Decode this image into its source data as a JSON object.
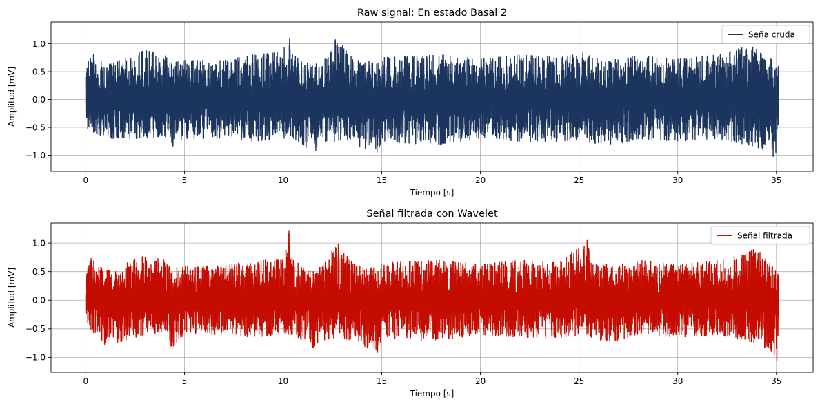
{
  "chart_data": [
    {
      "type": "line",
      "title": "Raw signal: En estado Basal 2",
      "xlabel": "Tiempo [s]",
      "ylabel": "Amplitud [mV]",
      "xlim": [
        -1.76,
        36.86
      ],
      "ylim": [
        -1.29,
        1.39
      ],
      "xticks": [
        0,
        5,
        10,
        15,
        20,
        25,
        30,
        35
      ],
      "xtick_labels": [
        "0",
        "5",
        "10",
        "15",
        "20",
        "25",
        "30",
        "35"
      ],
      "yticks": [
        -1.0,
        -0.5,
        0.0,
        0.5,
        1.0
      ],
      "ytick_labels": [
        "−1.0",
        "−0.5",
        "0.0",
        "0.5",
        "1.0"
      ],
      "grid": true,
      "legend_position": "top-right",
      "series": [
        {
          "name": "Seña cruda",
          "color": "#1c355e",
          "x_range": [
            0,
            35.1
          ],
          "envelope_segments_x": [
            0,
            0.2,
            1.0,
            3.0,
            4.0,
            4.3,
            5.0,
            7.0,
            8.5,
            10.0,
            10.3,
            10.5,
            11.0,
            11.5,
            12.0,
            12.7,
            13.5,
            14.8,
            15.0,
            17.0,
            18.0,
            20.0,
            22.0,
            24.0,
            25.4,
            25.6,
            27.0,
            28.0,
            30.0,
            32.0,
            34.0,
            34.8,
            35.1
          ],
          "envelope_upper": [
            0.4,
            0.88,
            0.6,
            0.88,
            0.8,
            0.65,
            0.7,
            0.7,
            0.8,
            0.85,
            1.27,
            0.8,
            0.7,
            0.6,
            0.7,
            1.1,
            0.75,
            0.65,
            0.75,
            0.78,
            0.8,
            0.72,
            0.8,
            0.75,
            0.85,
            0.75,
            0.72,
            0.8,
            0.72,
            0.8,
            1.0,
            0.7,
            0.6
          ],
          "envelope_lower": [
            -0.5,
            -0.55,
            -0.7,
            -0.7,
            -0.65,
            -0.9,
            -0.7,
            -0.7,
            -0.75,
            -0.7,
            -0.7,
            -0.7,
            -0.8,
            -0.97,
            -0.8,
            -0.75,
            -0.8,
            -0.95,
            -0.75,
            -0.8,
            -0.8,
            -0.7,
            -0.75,
            -0.75,
            -0.7,
            -0.8,
            -0.8,
            -0.7,
            -0.75,
            -0.7,
            -0.85,
            -1.0,
            -1.17
          ]
        }
      ]
    },
    {
      "type": "line",
      "title": "Señal filtrada con Wavelet",
      "xlabel": "Tiempo [s]",
      "ylabel": "Amplitud [mV]",
      "xlim": [
        -1.76,
        36.86
      ],
      "ylim": [
        -1.26,
        1.35
      ],
      "xticks": [
        0,
        5,
        10,
        15,
        20,
        25,
        30,
        35
      ],
      "xtick_labels": [
        "0",
        "5",
        "10",
        "15",
        "20",
        "25",
        "30",
        "35"
      ],
      "yticks": [
        -1.0,
        -0.5,
        0.0,
        0.5,
        1.0
      ],
      "ytick_labels": [
        "−1.0",
        "−0.5",
        "0.0",
        "0.5",
        "1.0"
      ],
      "grid": true,
      "legend_position": "top-right",
      "series": [
        {
          "name": "Señal filtrada",
          "color": "#c40c00",
          "x_range": [
            0,
            35.1
          ],
          "envelope_segments_x": [
            0,
            0.2,
            1.0,
            3.0,
            4.0,
            4.3,
            5.0,
            7.0,
            8.5,
            10.0,
            10.3,
            10.5,
            11.0,
            11.5,
            12.0,
            12.7,
            13.5,
            14.8,
            15.0,
            17.0,
            18.0,
            20.0,
            22.0,
            24.0,
            25.4,
            25.6,
            27.0,
            28.0,
            30.0,
            32.0,
            34.0,
            34.8,
            35.1
          ],
          "envelope_upper": [
            0.35,
            0.78,
            0.5,
            0.78,
            0.7,
            0.55,
            0.6,
            0.6,
            0.7,
            0.7,
            1.22,
            0.7,
            0.6,
            0.5,
            0.6,
            1.03,
            0.65,
            0.55,
            0.65,
            0.68,
            0.7,
            0.62,
            0.7,
            0.65,
            1.1,
            0.65,
            0.62,
            0.7,
            0.62,
            0.7,
            0.9,
            0.6,
            0.5
          ],
          "envelope_lower": [
            -0.45,
            -0.5,
            -0.8,
            -0.6,
            -0.55,
            -0.85,
            -0.6,
            -0.6,
            -0.65,
            -0.6,
            -0.6,
            -0.6,
            -0.7,
            -0.85,
            -0.7,
            -0.65,
            -0.7,
            -0.92,
            -0.65,
            -0.7,
            -0.7,
            -0.6,
            -0.65,
            -0.65,
            -0.6,
            -0.7,
            -0.7,
            -0.6,
            -0.65,
            -0.6,
            -0.75,
            -0.9,
            -1.13
          ]
        }
      ]
    }
  ]
}
